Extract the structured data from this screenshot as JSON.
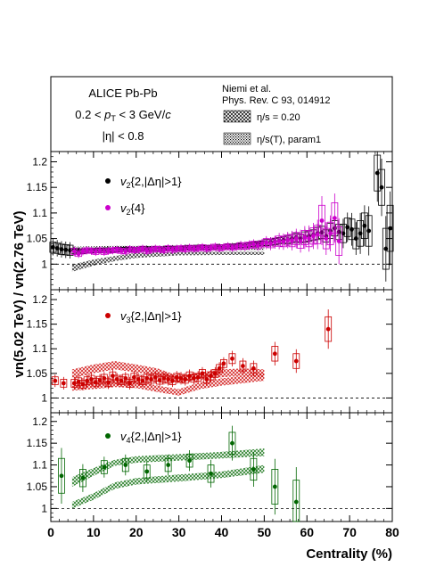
{
  "header": {
    "line1": "ALICE Pb-Pb",
    "line2_pre": "0.2 < ",
    "line2_var": "p",
    "line2_sub": "T",
    "line2_post": " < 3 GeV/",
    "line2_unit": "c",
    "line3": "|η| < 0.8",
    "ref_line1": "Niemi et al.",
    "ref_line2": "Phys. Rev. C 93, 014912",
    "model1": "η/s = 0.20",
    "model2": "η/s(T), param1"
  },
  "axes": {
    "ylabel": "vn(5.02 TeV) / vn(2.76 TeV)",
    "xlabel": "Centrality (%)",
    "xlim": [
      0,
      80
    ],
    "xticks": [
      "0",
      "10",
      "20",
      "30",
      "40",
      "50",
      "60",
      "70",
      "80"
    ]
  },
  "colors": {
    "v2_2": "#000000",
    "v2_4": "#cc00cc",
    "v3": "#cc0000",
    "v4": "#006600"
  },
  "chart_data": [
    {
      "type": "scatter",
      "panel": "v2",
      "ylim": [
        0.95,
        1.22
      ],
      "yticks": [
        "1",
        "1.05",
        "1.1",
        "1.15",
        "1.2"
      ],
      "reference_line": 1,
      "legend": {
        "s1_var": "v",
        "s1_sub": "2",
        "s1_text": "{2,|Δη|>1}",
        "s2_var": "v",
        "s2_sub": "2",
        "s2_text": "{4}"
      },
      "series": [
        {
          "x": [
            0.5,
            1.5,
            2.5,
            3.5,
            4.5,
            5.5,
            6.5,
            7.5,
            8.5,
            9.5,
            10.5,
            11.5,
            12.5,
            13.5,
            14.5,
            15.5,
            16.5,
            17.5,
            18.5,
            19.5,
            20.5,
            21.5,
            22.5,
            23.5,
            24.5,
            25.5,
            26.5,
            27.5,
            28.5,
            29.5,
            30.5,
            31.5,
            32.5,
            33.5,
            34.5,
            35.5,
            36.5,
            37.5,
            38.5,
            39.5,
            40.5,
            41.5,
            42.5,
            43.5,
            44.5,
            45.5,
            46.5,
            47.5,
            48.5,
            49.5,
            50.5,
            51.5,
            52.5,
            53.5,
            54.5,
            55.5,
            56.5,
            57.5,
            58.5,
            59.5,
            60.5,
            61.5,
            62.5,
            63.5,
            64.5,
            65.5,
            66.5,
            67.5,
            68.5,
            69.5,
            70.5,
            71.5,
            72.5,
            73.5,
            74.5,
            76.5,
            77.5,
            78.5,
            79.5
          ],
          "y": [
            1.033,
            1.031,
            1.029,
            1.028,
            1.027,
            1.026,
            1.026,
            1.025,
            1.026,
            1.026,
            1.027,
            1.027,
            1.027,
            1.028,
            1.027,
            1.028,
            1.029,
            1.029,
            1.028,
            1.029,
            1.029,
            1.03,
            1.03,
            1.029,
            1.03,
            1.03,
            1.03,
            1.031,
            1.031,
            1.031,
            1.031,
            1.032,
            1.032,
            1.032,
            1.033,
            1.033,
            1.032,
            1.033,
            1.033,
            1.034,
            1.034,
            1.035,
            1.035,
            1.036,
            1.037,
            1.037,
            1.038,
            1.039,
            1.04,
            1.041,
            1.042,
            1.043,
            1.044,
            1.046,
            1.047,
            1.048,
            1.05,
            1.052,
            1.05,
            1.053,
            1.055,
            1.057,
            1.06,
            1.062,
            1.055,
            1.065,
            1.07,
            1.063,
            1.06,
            1.072,
            1.068,
            1.05,
            1.06,
            1.075,
            1.065,
            1.178,
            1.15,
            1.03,
            1.07
          ],
          "err": [
            0.01,
            0.01,
            0.01,
            0.01,
            0.01,
            0.005,
            0.004,
            0.004,
            0.004,
            0.004,
            0.004,
            0.004,
            0.004,
            0.004,
            0.004,
            0.004,
            0.004,
            0.004,
            0.004,
            0.004,
            0.004,
            0.004,
            0.004,
            0.004,
            0.004,
            0.004,
            0.004,
            0.004,
            0.004,
            0.004,
            0.004,
            0.004,
            0.004,
            0.004,
            0.004,
            0.004,
            0.004,
            0.004,
            0.004,
            0.004,
            0.004,
            0.004,
            0.004,
            0.004,
            0.004,
            0.004,
            0.004,
            0.004,
            0.004,
            0.004,
            0.006,
            0.006,
            0.006,
            0.006,
            0.006,
            0.008,
            0.008,
            0.008,
            0.008,
            0.01,
            0.01,
            0.01,
            0.012,
            0.012,
            0.012,
            0.015,
            0.015,
            0.015,
            0.018,
            0.018,
            0.02,
            0.02,
            0.025,
            0.025,
            0.03,
            0.035,
            0.035,
            0.04,
            0.045
          ]
        },
        {
          "x": [
            5.5,
            6.5,
            7.5,
            8.5,
            9.5,
            10.5,
            11.5,
            12.5,
            13.5,
            14.5,
            15.5,
            16.5,
            17.5,
            18.5,
            19.5,
            20.5,
            21.5,
            22.5,
            23.5,
            24.5,
            25.5,
            26.5,
            27.5,
            28.5,
            29.5,
            30.5,
            31.5,
            32.5,
            33.5,
            34.5,
            35.5,
            36.5,
            37.5,
            38.5,
            39.5,
            40.5,
            41.5,
            42.5,
            43.5,
            44.5,
            45.5,
            46.5,
            47.5,
            48.5,
            49.5,
            50.5,
            51.5,
            52.5,
            53.5,
            54.5,
            55.5,
            56.5,
            57.5,
            58.5,
            59.5,
            60.5,
            61.5,
            62.5,
            63.5,
            64.5,
            65.5,
            66.5,
            67.5
          ],
          "y": [
            1.025,
            1.02,
            1.025,
            1.027,
            1.026,
            1.024,
            1.027,
            1.024,
            1.026,
            1.027,
            1.028,
            1.026,
            1.025,
            1.029,
            1.027,
            1.028,
            1.03,
            1.026,
            1.028,
            1.03,
            1.029,
            1.027,
            1.031,
            1.028,
            1.03,
            1.031,
            1.029,
            1.032,
            1.03,
            1.031,
            1.033,
            1.03,
            1.032,
            1.034,
            1.031,
            1.033,
            1.035,
            1.032,
            1.034,
            1.036,
            1.035,
            1.037,
            1.039,
            1.036,
            1.04,
            1.042,
            1.04,
            1.043,
            1.045,
            1.044,
            1.047,
            1.046,
            1.05,
            1.045,
            1.052,
            1.05,
            1.055,
            1.058,
            1.085,
            1.05,
            1.06,
            1.09,
            1.045
          ],
          "err": [
            0.006,
            0.005,
            0.005,
            0.005,
            0.005,
            0.005,
            0.005,
            0.005,
            0.005,
            0.005,
            0.005,
            0.005,
            0.005,
            0.005,
            0.005,
            0.005,
            0.005,
            0.005,
            0.005,
            0.005,
            0.005,
            0.005,
            0.005,
            0.005,
            0.005,
            0.005,
            0.005,
            0.005,
            0.005,
            0.005,
            0.005,
            0.005,
            0.005,
            0.005,
            0.005,
            0.005,
            0.005,
            0.005,
            0.005,
            0.006,
            0.006,
            0.006,
            0.006,
            0.006,
            0.006,
            0.008,
            0.008,
            0.008,
            0.01,
            0.01,
            0.01,
            0.012,
            0.012,
            0.014,
            0.014,
            0.016,
            0.016,
            0.018,
            0.03,
            0.02,
            0.022,
            0.03,
            0.028
          ]
        }
      ],
      "bands": [
        {
          "x": [
            5,
            10,
            15,
            20,
            30,
            40,
            50
          ],
          "ylow": [
            0.985,
            0.997,
            1.006,
            1.012,
            1.017,
            1.018,
            1.018
          ],
          "yhigh": [
            0.999,
            1.009,
            1.016,
            1.022,
            1.024,
            1.024,
            1.024
          ]
        },
        {
          "x": [
            5,
            10,
            15,
            20,
            30,
            40,
            50
          ],
          "ylow": [
            1.025,
            1.026,
            1.027,
            1.027,
            1.028,
            1.027,
            1.027
          ],
          "yhigh": [
            1.034,
            1.035,
            1.036,
            1.036,
            1.036,
            1.035,
            1.035
          ]
        }
      ]
    },
    {
      "type": "scatter",
      "panel": "v3",
      "ylim": [
        0.97,
        1.22
      ],
      "yticks": [
        "1",
        "1.05",
        "1.1",
        "1.15",
        "1.2"
      ],
      "reference_line": 1,
      "legend": {
        "s1_var": "v",
        "s1_sub": "3",
        "s1_text": "{2,|Δη|>1}"
      },
      "series": [
        {
          "x": [
            1,
            3,
            5.5,
            6.5,
            7.5,
            8.5,
            9.5,
            10.5,
            11.5,
            12.5,
            13.5,
            14.5,
            15.5,
            16.5,
            17.5,
            18.5,
            19.5,
            20.5,
            21.5,
            22.5,
            23.5,
            24.5,
            25.5,
            26.5,
            27.5,
            28.5,
            29.5,
            30.5,
            31.5,
            32.5,
            33.5,
            34.5,
            35.5,
            36.5,
            37.5,
            38.5,
            39.5,
            40.5,
            42.5,
            45,
            47.5,
            52.5,
            57.5,
            65
          ],
          "y": [
            1.035,
            1.03,
            1.03,
            1.033,
            1.028,
            1.035,
            1.038,
            1.032,
            1.036,
            1.04,
            1.031,
            1.045,
            1.038,
            1.035,
            1.04,
            1.03,
            1.042,
            1.038,
            1.035,
            1.04,
            1.038,
            1.042,
            1.036,
            1.04,
            1.038,
            1.035,
            1.042,
            1.04,
            1.038,
            1.045,
            1.04,
            1.042,
            1.05,
            1.038,
            1.045,
            1.05,
            1.06,
            1.07,
            1.08,
            1.065,
            1.06,
            1.09,
            1.075,
            1.14
          ],
          "err": [
            0.008,
            0.008,
            0.008,
            0.008,
            0.008,
            0.008,
            0.008,
            0.008,
            0.008,
            0.008,
            0.008,
            0.008,
            0.008,
            0.008,
            0.008,
            0.008,
            0.008,
            0.008,
            0.008,
            0.008,
            0.008,
            0.008,
            0.008,
            0.008,
            0.008,
            0.008,
            0.008,
            0.008,
            0.008,
            0.008,
            0.008,
            0.008,
            0.008,
            0.008,
            0.008,
            0.008,
            0.008,
            0.008,
            0.01,
            0.01,
            0.01,
            0.015,
            0.015,
            0.025
          ]
        }
      ],
      "bands": [
        {
          "x": [
            5,
            10,
            15,
            20,
            25,
            30,
            35,
            40,
            45,
            50
          ],
          "ylow": [
            1.04,
            1.05,
            1.058,
            1.052,
            1.045,
            1.03,
            1.038,
            1.042,
            1.045,
            1.042
          ],
          "yhigh": [
            1.058,
            1.068,
            1.075,
            1.068,
            1.06,
            1.045,
            1.052,
            1.058,
            1.06,
            1.058
          ]
        },
        {
          "x": [
            5,
            10,
            15,
            20,
            25,
            30,
            35,
            40,
            45,
            50
          ],
          "ylow": [
            1.015,
            1.018,
            1.022,
            1.02,
            1.012,
            1.005,
            1.018,
            1.025,
            1.03,
            1.035
          ],
          "yhigh": [
            1.03,
            1.034,
            1.036,
            1.035,
            1.025,
            1.018,
            1.032,
            1.04,
            1.045,
            1.052
          ]
        }
      ]
    },
    {
      "type": "scatter",
      "panel": "v4",
      "ylim": [
        0.97,
        1.22
      ],
      "yticks": [
        "1",
        "1.05",
        "1.1",
        "1.15",
        "1.2"
      ],
      "reference_line": 1,
      "legend": {
        "s1_var": "v",
        "s1_sub": "4",
        "s1_text": "{2,|Δη|>1}"
      },
      "series": [
        {
          "x": [
            2.5,
            7.5,
            12.5,
            17.5,
            22.5,
            27.5,
            32.5,
            37.5,
            42.5,
            47.5,
            52.5,
            57.5
          ],
          "y": [
            1.075,
            1.07,
            1.095,
            1.1,
            1.085,
            1.1,
            1.11,
            1.08,
            1.15,
            1.09,
            1.05,
            1.015
          ],
          "err": [
            0.04,
            0.02,
            0.015,
            0.015,
            0.015,
            0.015,
            0.015,
            0.02,
            0.025,
            0.025,
            0.04,
            0.05
          ]
        }
      ],
      "bands": [
        {
          "x": [
            5,
            10,
            15,
            20,
            30,
            40,
            50
          ],
          "ylow": [
            1.05,
            1.075,
            1.098,
            1.105,
            1.11,
            1.115,
            1.12
          ],
          "yhigh": [
            1.072,
            1.093,
            1.112,
            1.12,
            1.125,
            1.13,
            1.138
          ]
        },
        {
          "x": [
            5,
            10,
            15,
            20,
            30,
            40,
            50
          ],
          "ylow": [
            1.0,
            1.02,
            1.045,
            1.055,
            1.062,
            1.07,
            1.082
          ],
          "yhigh": [
            1.015,
            1.035,
            1.06,
            1.07,
            1.078,
            1.085,
            1.1
          ]
        }
      ]
    }
  ]
}
